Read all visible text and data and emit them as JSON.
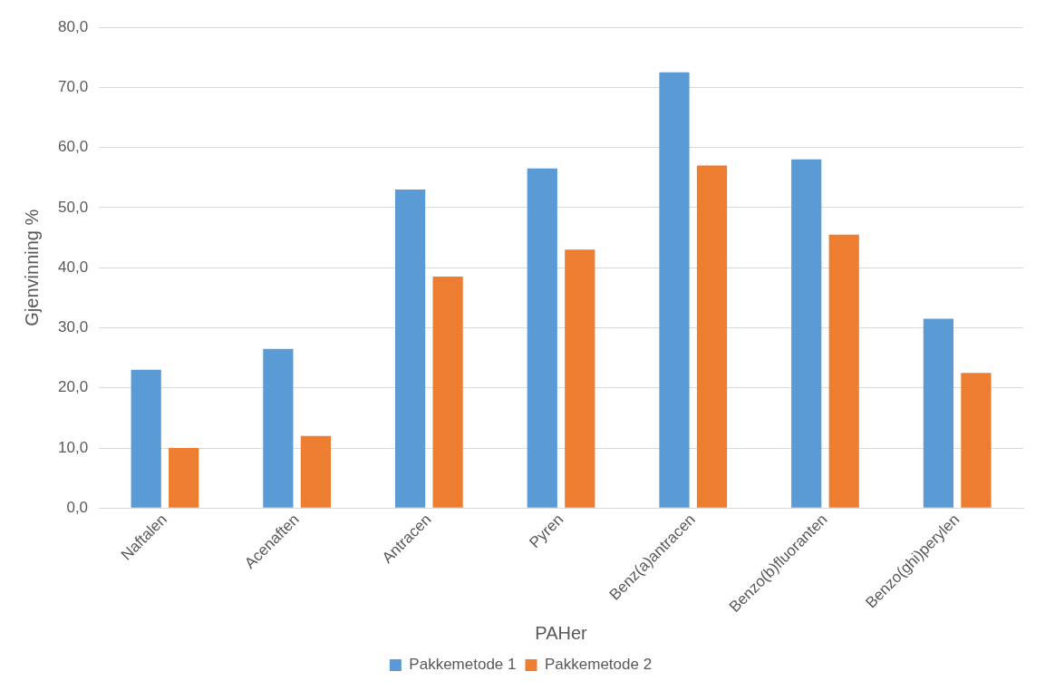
{
  "chart_data": {
    "type": "bar",
    "xlabel": "PAHer",
    "ylabel": "Gjenvinning %",
    "categories": [
      "Naftalen",
      "Acenaften",
      "Antracen",
      "Pyren",
      "Benz(a)antracen",
      "Benzo(b)fluoranten",
      "Benzo(ghi)perylen"
    ],
    "series": [
      {
        "name": "Pakkemetode 1",
        "color": "#5b9bd5",
        "values": [
          23.0,
          26.5,
          53.0,
          56.5,
          72.5,
          58.0,
          31.5
        ]
      },
      {
        "name": "Pakkemetode 2",
        "color": "#ed7d31",
        "values": [
          10.0,
          12.0,
          38.5,
          43.0,
          57.0,
          45.5,
          22.5
        ]
      }
    ],
    "ylim": [
      0,
      80
    ],
    "yticks": [
      {
        "value": 0,
        "label": "0,0"
      },
      {
        "value": 10,
        "label": "10,0"
      },
      {
        "value": 20,
        "label": "20,0"
      },
      {
        "value": 30,
        "label": "30,0"
      },
      {
        "value": 40,
        "label": "40,0"
      },
      {
        "value": 50,
        "label": "50,0"
      },
      {
        "value": 60,
        "label": "60,0"
      },
      {
        "value": 70,
        "label": "70,0"
      },
      {
        "value": 80,
        "label": "80,0"
      }
    ],
    "grid": "y",
    "legend": "bottom"
  }
}
